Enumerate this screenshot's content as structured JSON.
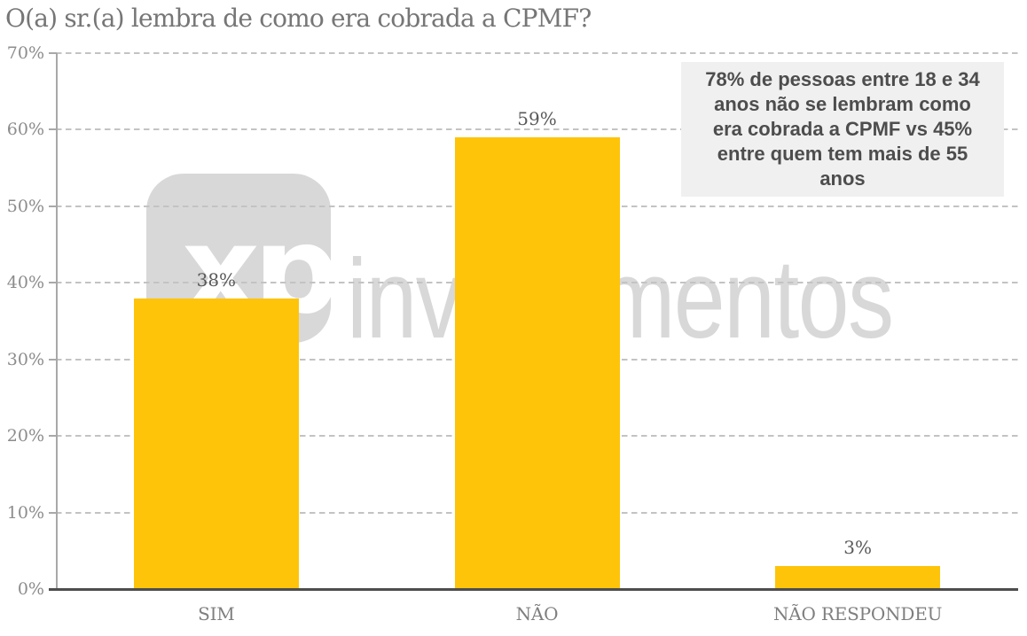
{
  "chart_data": {
    "type": "bar",
    "title": "O(a) sr.(a) lembra de como era cobrada a CPMF?",
    "categories": [
      "SIM",
      "NÃO",
      "NÃO RESPONDEU"
    ],
    "values": [
      38,
      59,
      3
    ],
    "value_labels": [
      "38%",
      "59%",
      "3%"
    ],
    "xlabel": "",
    "ylabel": "",
    "ylim": [
      0,
      70
    ],
    "ytick_interval": 10,
    "ytick_labels": [
      "0%",
      "10%",
      "20%",
      "30%",
      "40%",
      "50%",
      "60%",
      "70%"
    ],
    "grid": "horizontal-dashed",
    "legend": "none",
    "annotation": "78% de pessoas entre 18 e 34\nanos não se lembram como\nera cobrada a CPMF vs 45%\nentre quem tem mais de 55\nanos",
    "watermark": {
      "logo_text": "xp",
      "brand_text": "investimentos"
    },
    "colors": {
      "bar": "#FEC40A",
      "grid_line": "#c3c3c3",
      "x_axis_line": "#4d4d4d",
      "y_axis_line": "#a8a8a8",
      "title_text": "#767676",
      "ytick_text": "#8c8c8c",
      "category_text": "#7f7f7f",
      "value_text": "#595959",
      "watermark_gray": "#d8d8d8",
      "annotation_bg": "#f0f0f0",
      "annotation_text": "#4d4d4d"
    }
  }
}
